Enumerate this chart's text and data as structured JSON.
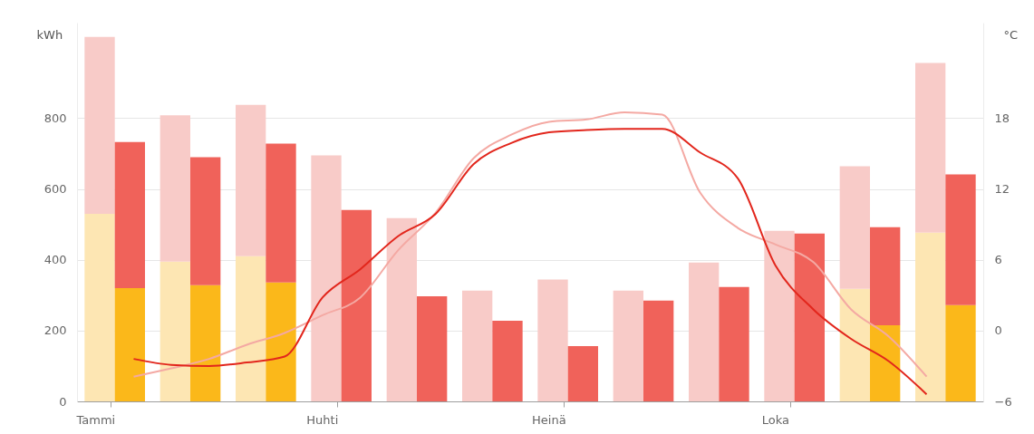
{
  "chart_data": {
    "type": "bar",
    "stacked": true,
    "ylabel": "kWh",
    "y2label": "°C",
    "categories": [
      "Tammi",
      null,
      null,
      null,
      null,
      null,
      "Huhti",
      null,
      null,
      null,
      null,
      null,
      "Heinä",
      null,
      null,
      null,
      null,
      null,
      "Loka",
      null,
      null,
      null,
      null,
      null
    ],
    "series": [
      {
        "colors": [
          "#fde6b3",
          "#fbb81a",
          "#fde6b3",
          "#fbb81a",
          "#fde6b3",
          "#fbb81a",
          "#fde6b3",
          "#fbb81a",
          "#fde6b3",
          "#fbb81a",
          "#fde6b3",
          "#fbb81a",
          "#fde6b3",
          "#fbb81a",
          "#fde6b3",
          "#fbb81a",
          "#fde6b3",
          "#fbb81a",
          "#fde6b3",
          "#fbb81a",
          "#fde6b3",
          "#fbb81a",
          "#fde6b3",
          "#fbb81a"
        ],
        "values": [
          530,
          320,
          395,
          328,
          410,
          336,
          null,
          null,
          null,
          null,
          null,
          null,
          null,
          null,
          null,
          null,
          null,
          null,
          null,
          null,
          318,
          215,
          477,
          272
        ]
      },
      {
        "colors": [
          "#f8cbc8",
          "#f0625a",
          "#f8cbc8",
          "#f0625a",
          "#f8cbc8",
          "#f0625a",
          "#f8cbc8",
          "#f0625a",
          "#f8cbc8",
          "#f0625a",
          "#f8cbc8",
          "#f0625a",
          "#f8cbc8",
          "#f0625a",
          "#f8cbc8",
          "#f0625a",
          "#f8cbc8",
          "#f0625a",
          "#f8cbc8",
          "#f0625a",
          "#f8cbc8",
          "#f0625a",
          "#f8cbc8",
          "#f0625a"
        ],
        "values": [
          500,
          413,
          413,
          362,
          428,
          392,
          695,
          541,
          518,
          297,
          313,
          228,
          344,
          156,
          313,
          285,
          392,
          323,
          482,
          474,
          346,
          277,
          479,
          369
        ]
      },
      {
        "type": "line",
        "axis": "y2",
        "color": "#f4a9a3",
        "values": [
          null,
          -3.9,
          -3.2,
          -2.4,
          -1.2,
          -0.2,
          1.3,
          2.8,
          6.8,
          10.0,
          14.6,
          16.6,
          17.7,
          17.9,
          18.5,
          18.3,
          11.7,
          8.7,
          7.3,
          5.8,
          1.8,
          -0.5,
          -3.9,
          null
        ]
      },
      {
        "type": "line",
        "axis": "y2",
        "color": "#e2261c",
        "values": [
          null,
          -2.4,
          -2.9,
          -3.0,
          -2.7,
          -2.2,
          2.8,
          5.2,
          8.0,
          9.9,
          14.1,
          15.9,
          16.8,
          17.0,
          17.1,
          17.1,
          15.1,
          12.9,
          5.5,
          1.8,
          -0.7,
          -2.6,
          -5.4,
          null
        ]
      }
    ],
    "ylim": [
      0,
      1070
    ],
    "yticks": [
      0,
      200,
      400,
      600,
      800
    ],
    "y2lim": [
      -6,
      26.1
    ],
    "y2ticks": [
      -6,
      0,
      6,
      12,
      18
    ],
    "grid": "y2",
    "legend": false,
    "marker": "none",
    "line_style": "solid"
  }
}
